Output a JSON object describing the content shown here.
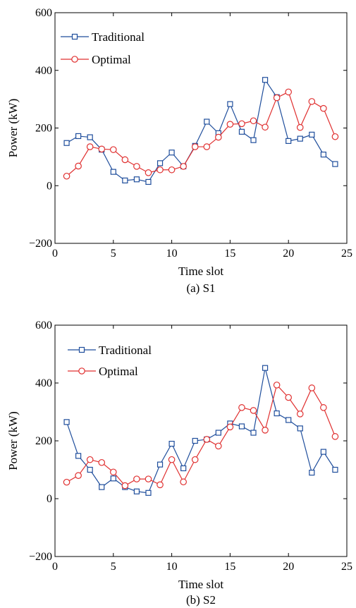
{
  "chart_data": [
    {
      "type": "line",
      "caption": "(a) S1",
      "xlabel": "Time slot",
      "ylabel": "Power (kW)",
      "xlim": [
        0,
        25
      ],
      "ylim": [
        -200,
        600
      ],
      "xticks": [
        0,
        5,
        10,
        15,
        20,
        25
      ],
      "yticks": [
        -200,
        0,
        200,
        400,
        600
      ],
      "x": [
        1,
        2,
        3,
        4,
        5,
        6,
        7,
        8,
        9,
        10,
        11,
        12,
        13,
        14,
        15,
        16,
        17,
        18,
        19,
        20,
        21,
        22,
        23,
        24
      ],
      "legend_position": "top-left",
      "grid": false,
      "series": [
        {
          "name": "Traditional",
          "color": "#1f4e9c",
          "marker": "square",
          "values": [
            148,
            172,
            168,
            125,
            48,
            18,
            22,
            13,
            78,
            115,
            67,
            138,
            222,
            182,
            283,
            187,
            158,
            367,
            307,
            155,
            163,
            177,
            108,
            75
          ]
        },
        {
          "name": "Optimal",
          "color": "#e03030",
          "marker": "circle",
          "values": [
            33,
            68,
            135,
            127,
            125,
            90,
            67,
            45,
            55,
            55,
            67,
            135,
            135,
            168,
            213,
            215,
            225,
            203,
            305,
            325,
            202,
            292,
            268,
            170
          ]
        }
      ]
    },
    {
      "type": "line",
      "caption": "(b) S2",
      "xlabel": "Time slot",
      "ylabel": "Power (kW)",
      "xlim": [
        0,
        25
      ],
      "ylim": [
        -200,
        600
      ],
      "xticks": [
        0,
        5,
        10,
        15,
        20,
        25
      ],
      "yticks": [
        -200,
        0,
        200,
        400,
        600
      ],
      "x": [
        1,
        2,
        3,
        4,
        5,
        6,
        7,
        8,
        9,
        10,
        11,
        12,
        13,
        14,
        15,
        16,
        17,
        18,
        19,
        20,
        21,
        22,
        23,
        24
      ],
      "legend_position": "top-left",
      "grid": false,
      "series": [
        {
          "name": "Traditional",
          "color": "#1f4e9c",
          "marker": "square",
          "values": [
            265,
            148,
            100,
            40,
            70,
            40,
            25,
            20,
            118,
            190,
            105,
            200,
            205,
            228,
            260,
            250,
            228,
            452,
            295,
            272,
            243,
            90,
            162,
            100
          ]
        },
        {
          "name": "Optimal",
          "color": "#e03030",
          "marker": "circle",
          "values": [
            57,
            80,
            135,
            125,
            92,
            45,
            68,
            68,
            48,
            135,
            58,
            135,
            205,
            182,
            248,
            315,
            305,
            237,
            393,
            350,
            293,
            383,
            315,
            215
          ]
        }
      ]
    }
  ]
}
